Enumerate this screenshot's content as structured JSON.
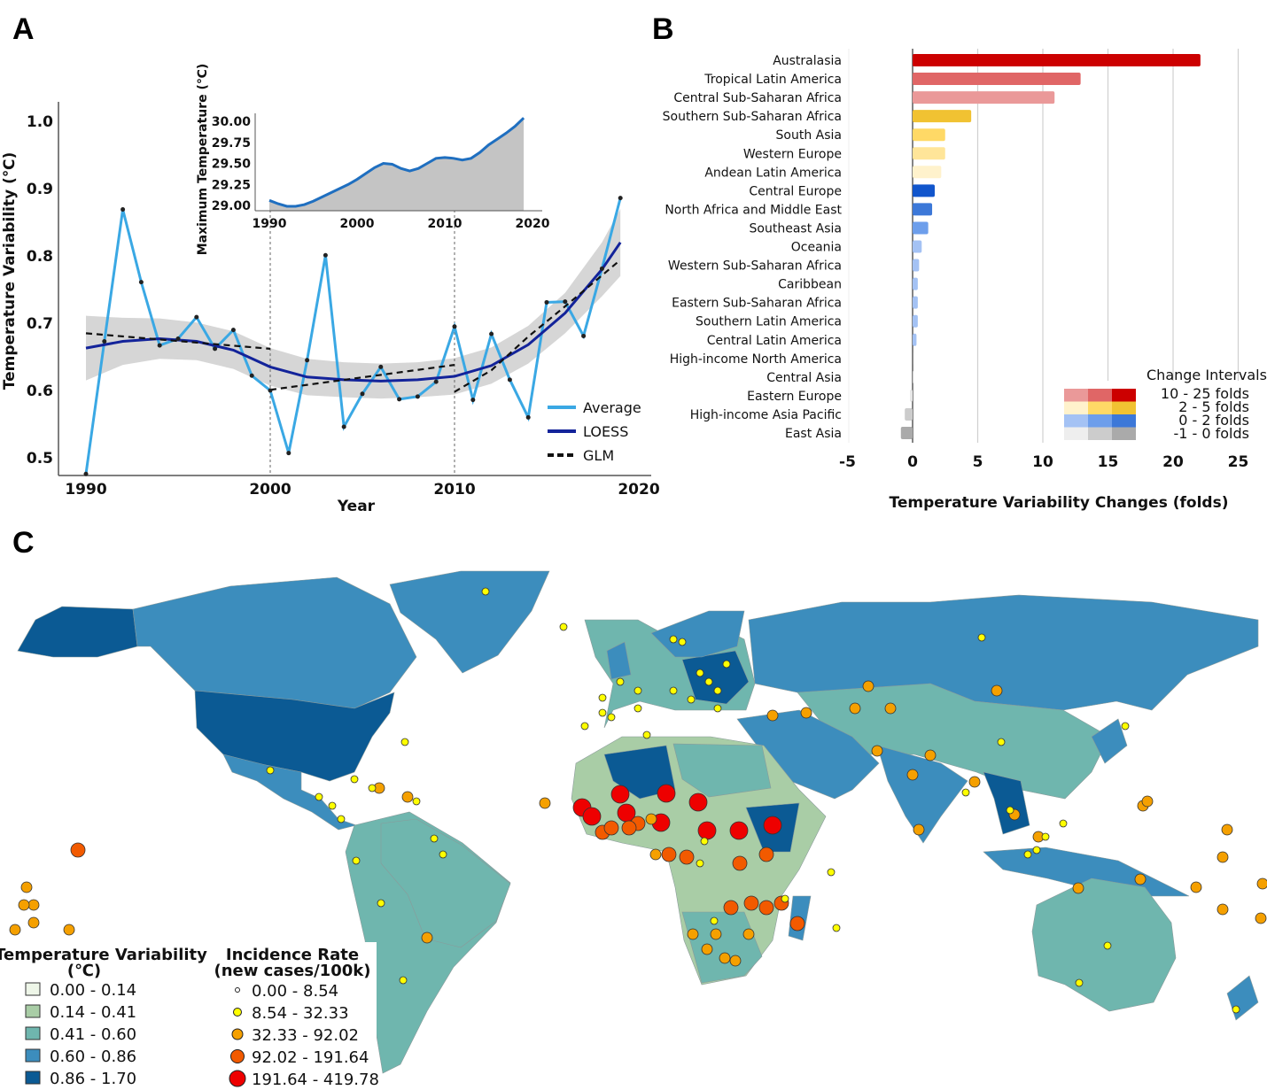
{
  "panels": {
    "a": "A",
    "b": "B",
    "c": "C"
  },
  "chart_data": [
    {
      "type": "line",
      "panel": "A",
      "xlabel": "Year",
      "ylabel": "Temperature  Variability (℃)",
      "xlim": [
        1989,
        2021
      ],
      "ylim": [
        0.47,
        1.03
      ],
      "xticks": [
        1990,
        2000,
        2010,
        2020
      ],
      "yticks": [
        "0.5",
        "0.6",
        "0.7",
        "0.8",
        "0.9",
        "1.0"
      ],
      "breakpoints": [
        2000,
        2010
      ],
      "legend_placement": "bottom-right",
      "series": [
        {
          "name": "Average",
          "color": "#3aa8e4",
          "x": [
            1990,
            1991,
            1992,
            1993,
            1994,
            1995,
            1996,
            1997,
            1998,
            1999,
            2000,
            2001,
            2002,
            2003,
            2004,
            2005,
            2006,
            2007,
            2008,
            2009,
            2010,
            2011,
            2012,
            2013,
            2014,
            2015,
            2016,
            2017,
            2018,
            2019
          ],
          "y": [
            0.476,
            0.673,
            0.869,
            0.761,
            0.667,
            0.677,
            0.709,
            0.662,
            0.69,
            0.622,
            0.6,
            0.507,
            0.645,
            0.801,
            0.546,
            0.595,
            0.635,
            0.587,
            0.591,
            0.613,
            0.695,
            0.586,
            0.684,
            0.616,
            0.56,
            0.731,
            0.732,
            0.681,
            0.781,
            0.886
          ]
        },
        {
          "name": "LOESS",
          "color": "#13239a",
          "x": [
            1990,
            1992,
            1994,
            1996,
            1998,
            2000,
            2002,
            2004,
            2006,
            2008,
            2010,
            2012,
            2014,
            2016,
            2018,
            2019
          ],
          "y": [
            0.663,
            0.673,
            0.677,
            0.673,
            0.66,
            0.635,
            0.62,
            0.616,
            0.614,
            0.616,
            0.621,
            0.637,
            0.668,
            0.715,
            0.78,
            0.82
          ],
          "ci_halfwidth": [
            0.048,
            0.035,
            0.03,
            0.028,
            0.028,
            0.028,
            0.027,
            0.026,
            0.026,
            0.026,
            0.027,
            0.027,
            0.028,
            0.03,
            0.04,
            0.05
          ]
        },
        {
          "name": "GLM",
          "color": "#111111",
          "style": "dashed",
          "segments": [
            {
              "x": [
                1990,
                2000
              ],
              "y": [
                0.685,
                0.662
              ]
            },
            {
              "x": [
                2000,
                2010
              ],
              "y": [
                0.601,
                0.638
              ]
            },
            {
              "x": [
                2010,
                2012,
                2014,
                2016,
                2019
              ],
              "y": [
                0.598,
                0.63,
                0.68,
                0.725,
                0.794
              ]
            }
          ]
        }
      ],
      "inset": {
        "type": "area",
        "ylabel": "Maximum Temperature (℃)",
        "xticks": [
          1990,
          2000,
          2010,
          2020
        ],
        "yticks": [
          "29.00",
          "29.25",
          "29.50",
          "29.75",
          "30.00"
        ],
        "xlim": [
          1989,
          2022
        ],
        "ylim": [
          28.95,
          30.1
        ],
        "color": "#1f6fc0",
        "fill": "#c4c4c4",
        "x": [
          1990,
          1991,
          1992,
          1993,
          1994,
          1995,
          1996,
          1997,
          1998,
          1999,
          2000,
          2001,
          2002,
          2003,
          2004,
          2005,
          2006,
          2007,
          2008,
          2009,
          2010,
          2011,
          2012,
          2013,
          2014,
          2015,
          2016,
          2017,
          2018,
          2019
        ],
        "y": [
          29.06,
          29.02,
          28.99,
          28.99,
          29.01,
          29.05,
          29.1,
          29.15,
          29.2,
          29.25,
          29.31,
          29.38,
          29.45,
          29.5,
          29.49,
          29.44,
          29.41,
          29.44,
          29.5,
          29.56,
          29.57,
          29.56,
          29.54,
          29.56,
          29.63,
          29.72,
          29.79,
          29.86,
          29.94,
          30.04
        ]
      }
    },
    {
      "type": "bar",
      "orientation": "horizontal",
      "panel": "B",
      "xlabel": "Temperature Variability Changes (folds)",
      "xlim": [
        -5,
        25
      ],
      "xticks": [
        "-5",
        "0",
        "5",
        "10",
        "15",
        "20",
        "25"
      ],
      "grid": true,
      "categories": [
        "Australasia",
        "Tropical Latin America",
        "Central Sub-Saharan Africa",
        "Southern Sub-Saharan Africa",
        "South Asia",
        "Western Europe",
        "Andean Latin America",
        "Central Europe",
        "North Africa and Middle East",
        "Southeast Asia",
        "Oceania",
        "Western Sub-Saharan Africa",
        "Caribbean",
        "Eastern Sub-Saharan Africa",
        "Southern Latin America",
        "Central Latin America",
        "High-income North America",
        "Central Asia",
        "Eastern Europe",
        "High-income Asia Pacific",
        "East Asia"
      ],
      "values": [
        22.1,
        12.9,
        10.9,
        4.5,
        2.5,
        2.5,
        2.2,
        1.7,
        1.5,
        1.2,
        0.7,
        0.5,
        0.4,
        0.4,
        0.4,
        0.3,
        0.05,
        0.02,
        -0.2,
        -0.6,
        -0.9
      ],
      "colors": [
        "#cc0000",
        "#e06666",
        "#ea9999",
        "#f1c232",
        "#ffd966",
        "#ffe599",
        "#fff2cc",
        "#1155cc",
        "#3c78d8",
        "#6d9eeb",
        "#a4c2f4",
        "#a4c2f4",
        "#a4c2f4",
        "#a4c2f4",
        "#a4c2f4",
        "#a4c2f4",
        "#888888",
        "#cccccc",
        "#e6e6e6",
        "#cccccc",
        "#aaaaaa"
      ],
      "legend": {
        "title": "Change Intervals",
        "placement": "bottom-right",
        "rows": [
          {
            "label": "10 - 25 folds",
            "colors": [
              "#ea9999",
              "#e06666",
              "#cc0000"
            ]
          },
          {
            "label": "2 - 5   folds",
            "colors": [
              "#fff2cc",
              "#ffd966",
              "#f1c232"
            ]
          },
          {
            "label": "0 - 2   folds",
            "colors": [
              "#a4c2f4",
              "#6d9eeb",
              "#3c78d8"
            ]
          },
          {
            "label": "-1 - 0   folds",
            "colors": [
              "#eeeeee",
              "#cccccc",
              "#aaaaaa"
            ]
          }
        ]
      }
    },
    {
      "type": "map",
      "panel": "C",
      "choropleth_legend": {
        "title": "Temperature Variability",
        "unit": "(℃)",
        "classes": [
          {
            "label": "0.00 - 0.14",
            "color": "#eef6e8"
          },
          {
            "label": "0.14 - 0.41",
            "color": "#a9cda6"
          },
          {
            "label": "0.41 - 0.60",
            "color": "#6fb6ae"
          },
          {
            "label": "0.60 - 0.86",
            "color": "#3c8dbd"
          },
          {
            "label": "0.86 - 1.70",
            "color": "#0b5a94"
          }
        ]
      },
      "bubble_legend": {
        "title": "Incidence Rate",
        "unit": "(new cases/100k)",
        "classes": [
          {
            "label": "0.00 - 8.54",
            "color": "#ffffff"
          },
          {
            "label": "8.54 - 32.33",
            "color": "#ffff00"
          },
          {
            "label": "32.33 - 92.02",
            "color": "#f5a000"
          },
          {
            "label": "92.02 - 191.64",
            "color": "#f25a00"
          },
          {
            "label": "191.64 - 419.78",
            "color": "#ee0000"
          }
        ]
      }
    }
  ]
}
